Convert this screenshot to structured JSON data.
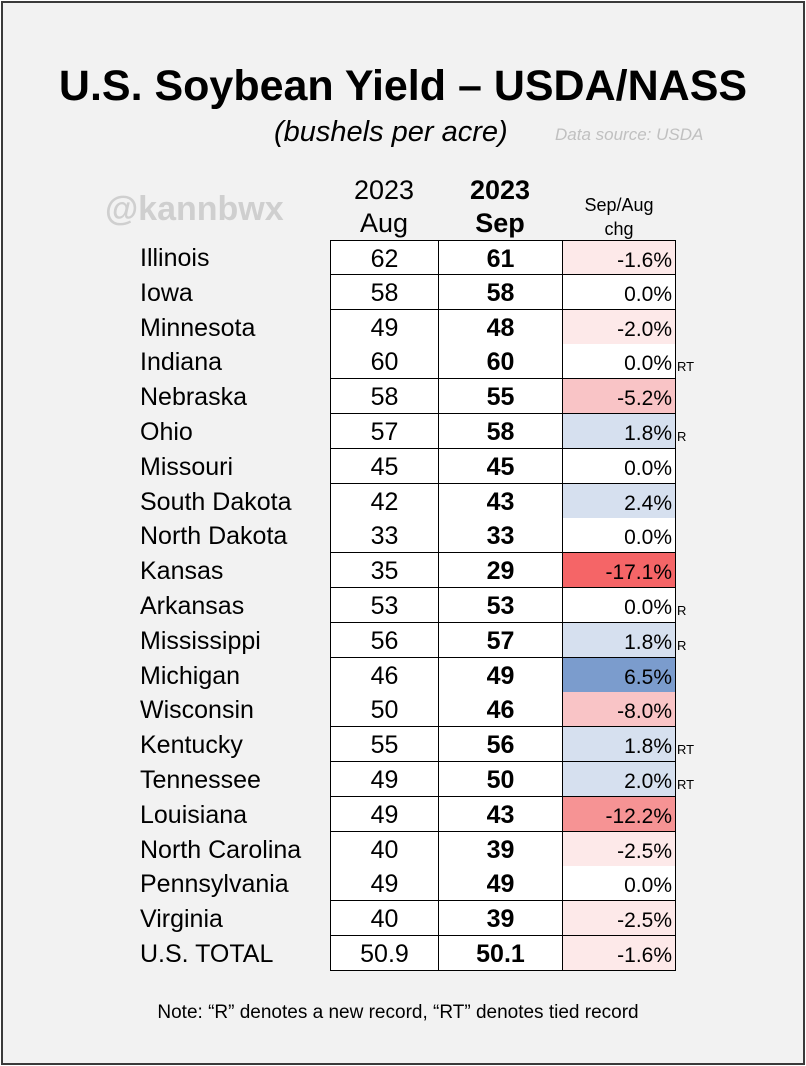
{
  "header": {
    "title": "U.S. Soybean Yield – USDA/NASS",
    "subtitle": "(bushels per acre)",
    "source": "Data source: USDA",
    "handle": "@kannbwx"
  },
  "columns": {
    "aug_year": "2023",
    "aug_month": "Aug",
    "sep_year": "2023",
    "sep_month": "Sep",
    "chg_line1": "Sep/Aug",
    "chg_line2": "chg"
  },
  "note": "Note: “R” denotes a new record, “RT” denotes tied record",
  "colors": {
    "neg_small": "#fde9e9",
    "neg_med": "#f9c4c6",
    "neg_large": "#f69394",
    "neg_xlarge": "#f56567",
    "pos_small": "#d6e0ef",
    "pos_large": "#7b9ccd",
    "neutral": "#ffffff"
  },
  "chart_data": {
    "type": "table",
    "columns": [
      "State",
      "2023 Aug",
      "2023 Sep",
      "Sep/Aug chg"
    ],
    "rows": [
      {
        "state": "Illinois",
        "aug": "62",
        "sep": "61",
        "chg": "-1.6%",
        "mark": "",
        "tone": "neg_small"
      },
      {
        "state": "Iowa",
        "aug": "58",
        "sep": "58",
        "chg": "0.0%",
        "mark": "",
        "tone": "neutral"
      },
      {
        "state": "Minnesota",
        "aug": "49",
        "sep": "48",
        "chg": "-2.0%",
        "mark": "",
        "tone": "neg_small"
      },
      {
        "state": "Indiana",
        "aug": "60",
        "sep": "60",
        "chg": "0.0%",
        "mark": "RT",
        "tone": "neutral"
      },
      {
        "state": "Nebraska",
        "aug": "58",
        "sep": "55",
        "chg": "-5.2%",
        "mark": "",
        "tone": "neg_med"
      },
      {
        "state": "Ohio",
        "aug": "57",
        "sep": "58",
        "chg": "1.8%",
        "mark": "R",
        "tone": "pos_small"
      },
      {
        "state": "Missouri",
        "aug": "45",
        "sep": "45",
        "chg": "0.0%",
        "mark": "",
        "tone": "neutral"
      },
      {
        "state": "South Dakota",
        "aug": "42",
        "sep": "43",
        "chg": "2.4%",
        "mark": "",
        "tone": "pos_small"
      },
      {
        "state": "North Dakota",
        "aug": "33",
        "sep": "33",
        "chg": "0.0%",
        "mark": "",
        "tone": "neutral"
      },
      {
        "state": "Kansas",
        "aug": "35",
        "sep": "29",
        "chg": "-17.1%",
        "mark": "",
        "tone": "neg_xlarge"
      },
      {
        "state": "Arkansas",
        "aug": "53",
        "sep": "53",
        "chg": "0.0%",
        "mark": "R",
        "tone": "neutral"
      },
      {
        "state": "Mississippi",
        "aug": "56",
        "sep": "57",
        "chg": "1.8%",
        "mark": "R",
        "tone": "pos_small"
      },
      {
        "state": "Michigan",
        "aug": "46",
        "sep": "49",
        "chg": "6.5%",
        "mark": "",
        "tone": "pos_large"
      },
      {
        "state": "Wisconsin",
        "aug": "50",
        "sep": "46",
        "chg": "-8.0%",
        "mark": "",
        "tone": "neg_med"
      },
      {
        "state": "Kentucky",
        "aug": "55",
        "sep": "56",
        "chg": "1.8%",
        "mark": "RT",
        "tone": "pos_small"
      },
      {
        "state": "Tennessee",
        "aug": "49",
        "sep": "50",
        "chg": "2.0%",
        "mark": "RT",
        "tone": "pos_small"
      },
      {
        "state": "Louisiana",
        "aug": "49",
        "sep": "43",
        "chg": "-12.2%",
        "mark": "",
        "tone": "neg_large"
      },
      {
        "state": "North Carolina",
        "aug": "40",
        "sep": "39",
        "chg": "-2.5%",
        "mark": "",
        "tone": "neg_small"
      },
      {
        "state": "Pennsylvania",
        "aug": "49",
        "sep": "49",
        "chg": "0.0%",
        "mark": "",
        "tone": "neutral"
      },
      {
        "state": "Virginia",
        "aug": "40",
        "sep": "39",
        "chg": "-2.5%",
        "mark": "",
        "tone": "neg_small"
      },
      {
        "state": "U.S. TOTAL",
        "aug": "50.9",
        "sep": "50.1",
        "chg": "-1.6%",
        "mark": "",
        "tone": "neg_small"
      }
    ]
  }
}
